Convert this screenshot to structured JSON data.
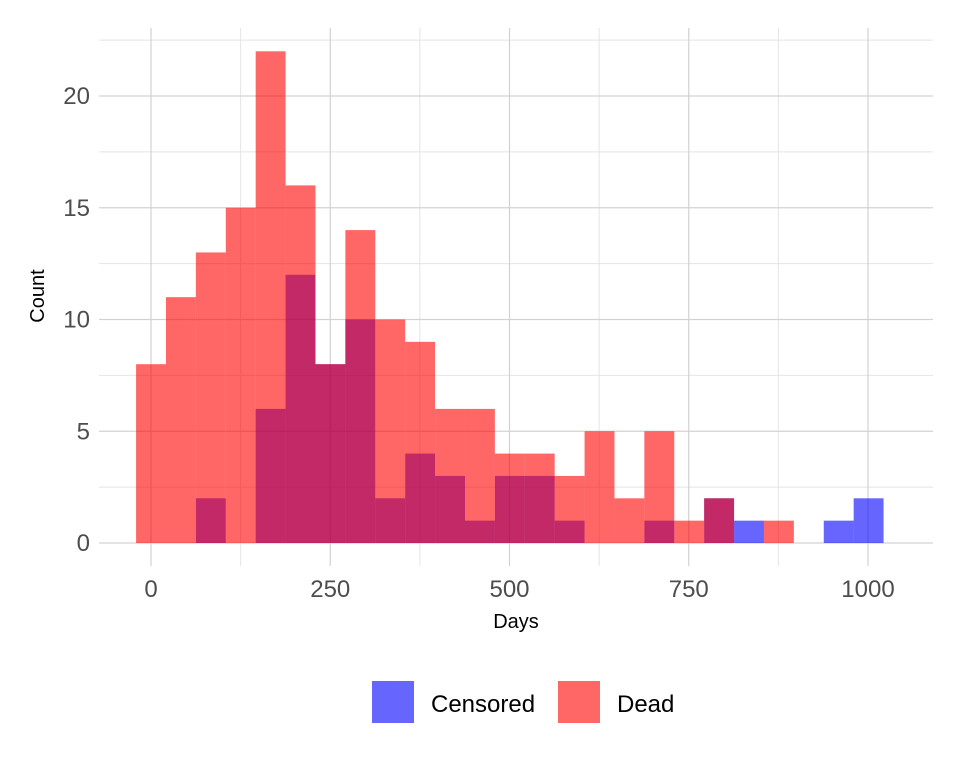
{
  "chart_data": {
    "type": "bar",
    "subtype": "overlaid-histogram",
    "xlabel": "Days",
    "ylabel": "Count",
    "xlim": [
      -70,
      1090
    ],
    "ylim": [
      0,
      23
    ],
    "x_ticks": [
      0,
      250,
      500,
      750,
      1000
    ],
    "x_tick_labels": [
      "0",
      "250",
      "500",
      "750",
      "1000"
    ],
    "y_ticks": [
      0,
      5,
      10,
      15,
      20
    ],
    "y_tick_labels": [
      "0",
      "5",
      "10",
      "15",
      "20"
    ],
    "grid": true,
    "legend_position": "bottom",
    "bin_width": 41.7,
    "bin_start": -20.8,
    "series": [
      {
        "name": "Censored",
        "color": "#0000ff",
        "opacity": 0.6,
        "values": [
          0,
          0,
          2,
          0,
          6,
          12,
          8,
          10,
          2,
          4,
          3,
          1,
          3,
          3,
          1,
          0,
          0,
          1,
          0,
          2,
          1,
          0,
          0,
          1,
          2
        ]
      },
      {
        "name": "Dead",
        "color": "#ff0000",
        "opacity": 0.6,
        "values": [
          8,
          11,
          13,
          15,
          22,
          16,
          8,
          14,
          10,
          9,
          6,
          6,
          4,
          4,
          3,
          5,
          2,
          5,
          1,
          2,
          0,
          1,
          0,
          0,
          0
        ]
      }
    ]
  }
}
